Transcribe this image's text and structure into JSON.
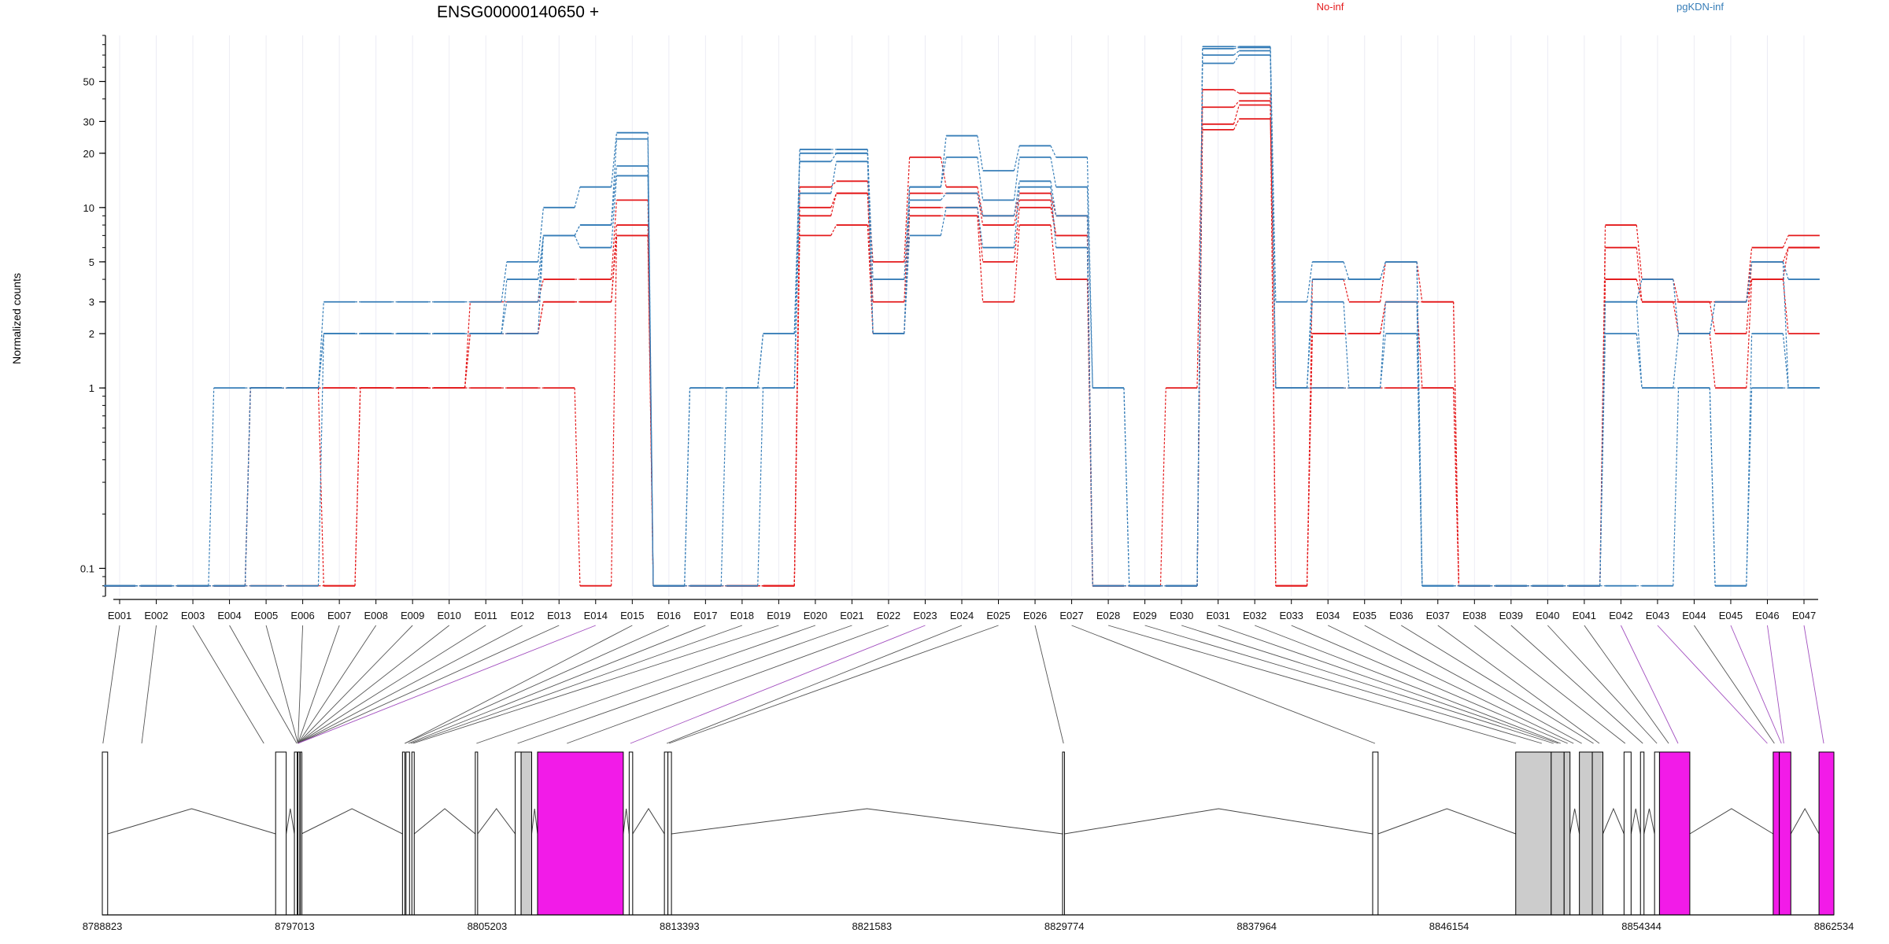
{
  "chart_data": {
    "type": "line",
    "title": "ENSG00000140650 +",
    "ylabel": "Normalized counts",
    "yscale": "log",
    "ylim": [
      0.07,
      90
    ],
    "yticks": [
      0.1,
      1,
      2,
      3,
      5,
      10,
      20,
      30,
      50
    ],
    "ytick_labels": [
      "0.1",
      "1",
      "2",
      "3",
      "5",
      "10",
      "20",
      "30",
      "50"
    ],
    "categories": [
      "E001",
      "E002",
      "E003",
      "E004",
      "E005",
      "E006",
      "E007",
      "E008",
      "E009",
      "E010",
      "E011",
      "E012",
      "E013",
      "E014",
      "E015",
      "E016",
      "E017",
      "E018",
      "E019",
      "E020",
      "E021",
      "E022",
      "E023",
      "E024",
      "E025",
      "E026",
      "E027",
      "E028",
      "E029",
      "E030",
      "E031",
      "E032",
      "E033",
      "E034",
      "E035",
      "E036",
      "E037",
      "E038",
      "E039",
      "E040",
      "E041",
      "E042",
      "E043",
      "E044",
      "E045",
      "E046",
      "E047"
    ],
    "groups": [
      {
        "name": "No-inf",
        "color": "#e41a1c"
      },
      {
        "name": "pgKDN-inf",
        "color": "#377eb8"
      }
    ],
    "series": [
      {
        "group": "No-inf",
        "values": [
          0.08,
          0.08,
          0.08,
          0.08,
          1,
          1,
          1,
          1,
          1,
          1,
          3,
          3,
          4,
          4,
          11,
          0.08,
          0.08,
          0.08,
          0.08,
          13,
          14,
          5,
          19,
          13,
          9,
          12,
          9,
          0.08,
          0.08,
          1,
          45,
          43,
          0.08,
          4,
          3,
          5,
          3,
          0.08,
          0.08,
          0.08,
          0.08,
          8,
          4,
          3,
          3,
          6,
          7
        ]
      },
      {
        "group": "No-inf",
        "values": [
          0.08,
          0.08,
          0.08,
          0.08,
          1,
          1,
          1,
          1,
          1,
          1,
          2,
          2,
          3,
          3,
          8,
          0.08,
          0.08,
          0.08,
          0.08,
          10,
          12,
          3,
          12,
          12,
          8,
          11,
          7,
          0.08,
          0.08,
          0.08,
          36,
          39,
          0.08,
          2,
          2,
          3,
          3,
          0.08,
          0.08,
          0.08,
          0.08,
          4,
          3,
          3,
          2,
          5,
          6
        ]
      },
      {
        "group": "No-inf",
        "values": [
          0.08,
          0.08,
          0.08,
          0.08,
          1,
          1,
          0.08,
          1,
          1,
          1,
          2,
          2,
          3,
          3,
          7,
          0.08,
          0.08,
          0.08,
          0.08,
          9,
          12,
          2,
          10,
          10,
          5,
          10,
          7,
          0.08,
          0.08,
          0.08,
          29,
          37,
          0.08,
          2,
          2,
          3,
          1,
          0.08,
          0.08,
          0.08,
          0.08,
          4,
          3,
          2,
          1,
          4,
          6
        ]
      },
      {
        "group": "No-inf",
        "values": [
          0.08,
          0.08,
          0.08,
          0.08,
          0.08,
          0.08,
          0.08,
          1,
          1,
          1,
          1,
          1,
          1,
          0.08,
          7,
          0.08,
          0.08,
          0.08,
          0.08,
          7,
          8,
          2,
          9,
          9,
          3,
          8,
          4,
          0.08,
          0.08,
          0.08,
          27,
          31,
          1,
          1,
          1,
          1,
          1,
          0.08,
          0.08,
          0.08,
          0.08,
          6,
          3,
          3,
          3,
          4,
          2
        ]
      },
      {
        "group": "pgKDN-inf",
        "values": [
          0.08,
          0.08,
          0.08,
          1,
          1,
          1,
          3,
          3,
          3,
          3,
          3,
          5,
          10,
          13,
          26,
          0.08,
          1,
          1,
          1,
          21,
          21,
          4,
          13,
          25,
          16,
          22,
          19,
          1,
          0.08,
          0.08,
          78,
          78,
          3,
          5,
          4,
          5,
          0.08,
          0.08,
          0.08,
          0.08,
          0.08,
          3,
          4,
          2,
          3,
          5,
          4
        ]
      },
      {
        "group": "pgKDN-inf",
        "values": [
          0.08,
          0.08,
          0.08,
          0.08,
          1,
          1,
          2,
          2,
          2,
          2,
          2,
          4,
          7,
          8,
          24,
          0.08,
          1,
          1,
          2,
          20,
          20,
          2,
          13,
          19,
          11,
          19,
          13,
          1,
          0.08,
          0.08,
          76,
          77,
          1,
          4,
          4,
          5,
          0.08,
          0.08,
          0.08,
          0.08,
          0.08,
          3,
          1,
          2,
          3,
          5,
          1
        ]
      },
      {
        "group": "pgKDN-inf",
        "values": [
          0.08,
          0.08,
          0.08,
          0.08,
          1,
          1,
          2,
          2,
          2,
          2,
          2,
          3,
          7,
          8,
          17,
          0.08,
          0.08,
          1,
          2,
          18,
          20,
          2,
          11,
          12,
          9,
          14,
          9,
          0.08,
          0.08,
          0.08,
          70,
          74,
          1,
          3,
          1,
          3,
          0.08,
          0.08,
          0.08,
          0.08,
          0.08,
          2,
          1,
          1,
          0.08,
          2,
          1
        ]
      },
      {
        "group": "pgKDN-inf",
        "values": [
          0.08,
          0.08,
          0.08,
          0.08,
          0.08,
          0.08,
          2,
          2,
          2,
          2,
          2,
          2,
          7,
          6,
          15,
          0.08,
          0.08,
          0.08,
          1,
          12,
          18,
          2,
          7,
          10,
          6,
          13,
          6,
          0.08,
          0.08,
          0.08,
          63,
          70,
          1,
          1,
          1,
          2,
          0.08,
          0.08,
          0.08,
          0.08,
          0.08,
          0.08,
          0.08,
          1,
          0.08,
          1,
          1
        ]
      }
    ],
    "gene_axis": {
      "tick_labels": [
        "8788823",
        "8797013",
        "8805203",
        "8813393",
        "8821583",
        "8829774",
        "8837964",
        "8846154",
        "8854344",
        "8862534"
      ],
      "range": [
        8788823,
        8862534
      ]
    },
    "exon_blocks": [
      {
        "start": 8788823,
        "end": 8789050,
        "fill": "#ffffff"
      },
      {
        "start": 8796200,
        "end": 8796650,
        "fill": "#ffffff"
      },
      {
        "start": 8797000,
        "end": 8797120,
        "fill": "#ffffff"
      },
      {
        "start": 8797150,
        "end": 8797230,
        "fill": "#ffffff"
      },
      {
        "start": 8797250,
        "end": 8797300,
        "fill": "#ffffff"
      },
      {
        "start": 8801600,
        "end": 8801700,
        "fill": "#ffffff"
      },
      {
        "start": 8801750,
        "end": 8801900,
        "fill": "#ffffff"
      },
      {
        "start": 8802000,
        "end": 8802100,
        "fill": "#ffffff"
      },
      {
        "start": 8804700,
        "end": 8804800,
        "fill": "#ffffff"
      },
      {
        "start": 8806400,
        "end": 8806650,
        "fill": "#ffffff"
      },
      {
        "start": 8806650,
        "end": 8807100,
        "fill": "#cccccc"
      },
      {
        "start": 8807350,
        "end": 8811000,
        "fill": "#f21be8"
      },
      {
        "start": 8811250,
        "end": 8811400,
        "fill": "#ffffff"
      },
      {
        "start": 8812750,
        "end": 8812900,
        "fill": "#ffffff"
      },
      {
        "start": 8812900,
        "end": 8813050,
        "fill": "#ffffff"
      },
      {
        "start": 8829700,
        "end": 8829780,
        "fill": "#ffffff"
      },
      {
        "start": 8842900,
        "end": 8843130,
        "fill": "#ffffff"
      },
      {
        "start": 8848990,
        "end": 8850500,
        "fill": "#cccccc"
      },
      {
        "start": 8850500,
        "end": 8851050,
        "fill": "#cccccc"
      },
      {
        "start": 8851050,
        "end": 8851300,
        "fill": "#cccccc"
      },
      {
        "start": 8851700,
        "end": 8852250,
        "fill": "#cccccc"
      },
      {
        "start": 8852250,
        "end": 8852700,
        "fill": "#cccccc"
      },
      {
        "start": 8853600,
        "end": 8853900,
        "fill": "#ffffff"
      },
      {
        "start": 8854300,
        "end": 8854450,
        "fill": "#ffffff"
      },
      {
        "start": 8854900,
        "end": 8855110,
        "fill": "#ffffff"
      },
      {
        "start": 8855110,
        "end": 8856400,
        "fill": "#f21be8"
      },
      {
        "start": 8859950,
        "end": 8860210,
        "fill": "#f21be8"
      },
      {
        "start": 8860210,
        "end": 8860700,
        "fill": "#f21be8"
      },
      {
        "start": 8861900,
        "end": 8862534,
        "fill": "#f21be8"
      }
    ],
    "exon_link_positions": [
      8788850,
      8790500,
      8795700,
      8797100,
      8797150,
      8797150,
      8797150,
      8797150,
      8797150,
      8797150,
      8797150,
      8797150,
      8797150,
      8797150,
      8801700,
      8801700,
      8801850,
      8801950,
      8802050,
      8804750,
      8806500,
      8808600,
      8811300,
      8812850,
      8812950,
      8829740,
      8843000,
      8849000,
      8850100,
      8850600,
      8850800,
      8850900,
      8851200,
      8851450,
      8851800,
      8852300,
      8852550,
      8853650,
      8854400,
      8855000,
      8855500,
      8855900,
      8859700,
      8860000,
      8860300,
      8860400,
      8862100
    ],
    "highlighted_links": [
      14,
      23,
      42,
      43,
      45,
      46,
      47
    ],
    "legend": "top-right"
  }
}
